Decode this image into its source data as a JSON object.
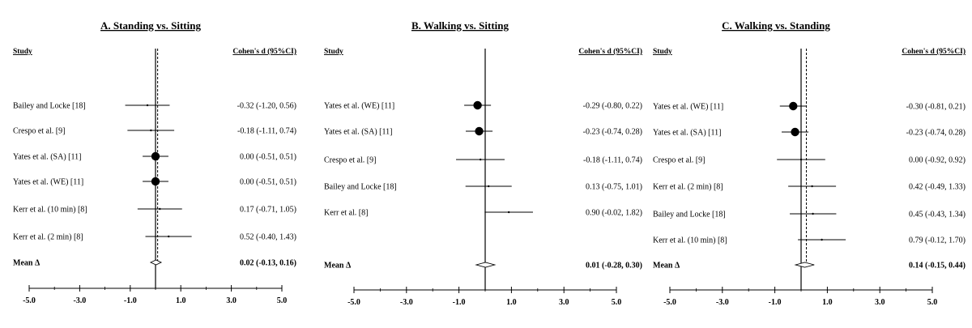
{
  "chart_data": [
    {
      "type": "forest",
      "title": "A. Standing vs. Sitting",
      "study_header": "Study",
      "effect_header": "Cohen's d (95%CI)",
      "xlim": [
        -5.0,
        5.0
      ],
      "ticks": [
        "-5.0",
        "-3.0",
        "-1.0",
        "1.0",
        "3.0",
        "5.0"
      ],
      "studies": [
        {
          "name": "Bailey and Locke [18]",
          "d": -0.32,
          "lo": -1.2,
          "hi": 0.56,
          "text": "-0.32  (-1.20,  0.56)",
          "weight": 1
        },
        {
          "name": "Crespo et al. [9]",
          "d": -0.18,
          "lo": -1.11,
          "hi": 0.74,
          "text": "-0.18  (-1.11,  0.74)",
          "weight": 1
        },
        {
          "name": "Yates et al. (SA) [11]",
          "d": 0.0,
          "lo": -0.51,
          "hi": 0.51,
          "text": "0.00  (-0.51,  0.51)",
          "weight": 10
        },
        {
          "name": "Yates et al. (WE) [11]",
          "d": 0.0,
          "lo": -0.51,
          "hi": 0.51,
          "text": "0.00  (-0.51,  0.51)",
          "weight": 10
        },
        {
          "name": "Kerr et al. (10 min) [8]",
          "d": 0.17,
          "lo": -0.71,
          "hi": 1.05,
          "text": "0.17  (-0.71,  1.05)",
          "weight": 1
        },
        {
          "name": "Kerr et al. (2 min) [8]",
          "d": 0.52,
          "lo": -0.4,
          "hi": 1.43,
          "text": "0.52  (-0.40,  1.43)",
          "weight": 1
        }
      ],
      "mean": {
        "label": "Mean  Δ",
        "d": 0.02,
        "lo": -0.13,
        "hi": 0.16,
        "text": "0.02 (-0.13, 0.16)"
      }
    },
    {
      "type": "forest",
      "title": "B. Walking vs. Sitting",
      "study_header": "Study",
      "effect_header": "Cohen's d (95%CI)",
      "xlim": [
        -5.0,
        5.0
      ],
      "ticks": [
        "-5.0",
        "-3.0",
        "-1.0",
        "1.0",
        "3.0",
        "5.0"
      ],
      "studies": [
        {
          "name": "Yates et al. (WE) [11]",
          "d": -0.29,
          "lo": -0.8,
          "hi": 0.22,
          "text": "-0.29  (-0.80,  0.22)",
          "weight": 10
        },
        {
          "name": "Yates et al. (SA) [11]",
          "d": -0.23,
          "lo": -0.74,
          "hi": 0.28,
          "text": "-0.23  (-0.74,  0.28)",
          "weight": 10
        },
        {
          "name": "Crespo et al. [9]",
          "d": -0.18,
          "lo": -1.11,
          "hi": 0.74,
          "text": "-0.18  (-1.11,  0.74)",
          "weight": 1
        },
        {
          "name": "Bailey and Locke [18]",
          "d": 0.13,
          "lo": -0.75,
          "hi": 1.01,
          "text": "0.13  (-0.75,  1.01)",
          "weight": 1
        },
        {
          "name": "Kerr et al. [8]",
          "d": 0.9,
          "lo": -0.02,
          "hi": 1.82,
          "text": "0.90  (-0.02,  1.82)",
          "weight": 1
        }
      ],
      "mean": {
        "label": "Mean  Δ",
        "d": 0.01,
        "lo": -0.28,
        "hi": 0.3,
        "text": "0.01 (-0.28, 0.30)"
      }
    },
    {
      "type": "forest",
      "title": "C. Walking vs. Standing",
      "study_header": "Study",
      "effect_header": "Cohen's d (95%CI)",
      "xlim": [
        -5.0,
        5.0
      ],
      "ticks": [
        "-5.0",
        "-3.0",
        "-1.0",
        "1.0",
        "3.0",
        "5.0"
      ],
      "studies": [
        {
          "name": "Yates et al. (WE) [11]",
          "d": -0.3,
          "lo": -0.81,
          "hi": 0.21,
          "text": "-0.30  (-0.81,  0.21)",
          "weight": 10
        },
        {
          "name": "Yates et al. (SA) [11]",
          "d": -0.23,
          "lo": -0.74,
          "hi": 0.28,
          "text": "-0.23  (-0.74,  0.28)",
          "weight": 10
        },
        {
          "name": "Crespo et al. [9]",
          "d": 0.0,
          "lo": -0.92,
          "hi": 0.92,
          "text": "0.00  (-0.92,  0.92)",
          "weight": 1
        },
        {
          "name": "Kerr et al. (2 min) [8]",
          "d": 0.42,
          "lo": -0.49,
          "hi": 1.33,
          "text": "0.42  (-0.49,  1.33)",
          "weight": 1
        },
        {
          "name": "Bailey and Locke [18]",
          "d": 0.45,
          "lo": -0.43,
          "hi": 1.34,
          "text": "0.45  (-0.43,  1.34)",
          "weight": 1
        },
        {
          "name": "Kerr et al. (10 min) [8]",
          "d": 0.79,
          "lo": -0.12,
          "hi": 1.7,
          "text": "0.79  (-0.12,  1.70)",
          "weight": 1
        }
      ],
      "mean": {
        "label": "Mean  Δ",
        "d": 0.14,
        "lo": -0.15,
        "hi": 0.44,
        "text": "0.14 (-0.15, 0.44)"
      }
    }
  ]
}
